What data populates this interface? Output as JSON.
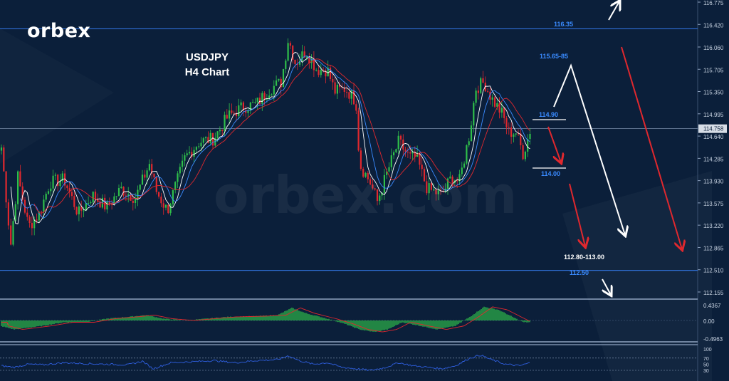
{
  "brand": {
    "logo": "orbex",
    "watermark": "orbex.com"
  },
  "title": {
    "line1": "USDJPY",
    "line2": "H4 Chart"
  },
  "colors": {
    "background": "#0b1f3a",
    "bull": "#2fbf4a",
    "bear": "#e0282e",
    "level_line": "#2f6fd6",
    "level_text": "#3a8bff",
    "arrow_red": "#e0282e",
    "arrow_white": "#ffffff",
    "macd": "#2fbf4a",
    "signal": "#e0282e",
    "rsi": "#2f5fe0"
  },
  "chart_data": {
    "type": "candlestick",
    "symbol": "USDJPY",
    "timeframe": "H4",
    "current_price": "114.758",
    "price_axis": [
      "116.775",
      "116.420",
      "116.060",
      "115.705",
      "115.350",
      "114.995",
      "114.640",
      "114.285",
      "113.930",
      "113.575",
      "113.220",
      "112.865",
      "112.510",
      "112.155"
    ],
    "ylim": [
      112.1,
      116.8
    ],
    "horizontal_levels": [
      {
        "price": 116.35,
        "label": "116.35"
      },
      {
        "price": 112.5,
        "label": "112.50"
      }
    ],
    "level_labels": [
      {
        "text": "115.65-85",
        "price": 115.75
      },
      {
        "text": "114.90",
        "price": 114.9
      },
      {
        "text": "114.00",
        "price": 114.0
      },
      {
        "text": "112.80-113.00",
        "price": 112.9
      }
    ],
    "anchors": [
      [
        0,
        114.7
      ],
      [
        15,
        112.9
      ],
      [
        25,
        114.0
      ],
      [
        40,
        113.2
      ],
      [
        55,
        113.4
      ],
      [
        70,
        113.9
      ],
      [
        90,
        113.95
      ],
      [
        110,
        113.4
      ],
      [
        130,
        113.7
      ],
      [
        150,
        113.5
      ],
      [
        170,
        113.8
      ],
      [
        190,
        113.65
      ],
      [
        210,
        114.2
      ],
      [
        220,
        113.75
      ],
      [
        235,
        113.45
      ],
      [
        260,
        114.3
      ],
      [
        280,
        114.55
      ],
      [
        300,
        114.6
      ],
      [
        320,
        114.95
      ],
      [
        340,
        115.1
      ],
      [
        360,
        115.15
      ],
      [
        380,
        115.4
      ],
      [
        395,
        115.5
      ],
      [
        405,
        116.2
      ],
      [
        415,
        115.8
      ],
      [
        430,
        116.0
      ],
      [
        445,
        115.7
      ],
      [
        460,
        115.7
      ],
      [
        470,
        115.35
      ],
      [
        485,
        115.4
      ],
      [
        500,
        115.2
      ],
      [
        505,
        114.2
      ],
      [
        520,
        113.9
      ],
      [
        530,
        113.6
      ],
      [
        545,
        114.1
      ],
      [
        560,
        114.55
      ],
      [
        575,
        114.3
      ],
      [
        585,
        114.3
      ],
      [
        600,
        113.8
      ],
      [
        620,
        113.7
      ],
      [
        635,
        114.0
      ],
      [
        645,
        113.9
      ],
      [
        660,
        114.7
      ],
      [
        668,
        115.4
      ],
      [
        680,
        115.5
      ],
      [
        690,
        115.25
      ],
      [
        705,
        115.0
      ],
      [
        715,
        114.7
      ],
      [
        725,
        114.7
      ],
      [
        735,
        114.35
      ],
      [
        745,
        114.75
      ]
    ],
    "macd_axis": [
      "0.4367",
      "0.00",
      "-0.4963"
    ],
    "macd_anchors": [
      [
        0,
        -0.15
      ],
      [
        20,
        -0.25
      ],
      [
        40,
        -0.2
      ],
      [
        60,
        -0.15
      ],
      [
        90,
        -0.05
      ],
      [
        120,
        -0.05
      ],
      [
        150,
        0.05
      ],
      [
        180,
        0.1
      ],
      [
        205,
        0.15
      ],
      [
        230,
        0.05
      ],
      [
        260,
        0.0
      ],
      [
        290,
        0.05
      ],
      [
        320,
        0.1
      ],
      [
        360,
        0.12
      ],
      [
        390,
        0.15
      ],
      [
        410,
        0.35
      ],
      [
        430,
        0.2
      ],
      [
        460,
        0.05
      ],
      [
        485,
        -0.1
      ],
      [
        505,
        -0.25
      ],
      [
        525,
        -0.32
      ],
      [
        545,
        -0.25
      ],
      [
        565,
        -0.05
      ],
      [
        590,
        -0.15
      ],
      [
        615,
        -0.25
      ],
      [
        640,
        -0.15
      ],
      [
        660,
        0.1
      ],
      [
        680,
        0.38
      ],
      [
        700,
        0.3
      ],
      [
        720,
        0.1
      ],
      [
        735,
        -0.05
      ],
      [
        745,
        -0.05
      ]
    ],
    "rsi_axis": [
      "100",
      "70",
      "50",
      "30"
    ],
    "rsi_anchors": [
      [
        0,
        45
      ],
      [
        20,
        40
      ],
      [
        40,
        50
      ],
      [
        60,
        48
      ],
      [
        90,
        55
      ],
      [
        120,
        52
      ],
      [
        150,
        50
      ],
      [
        180,
        48
      ],
      [
        200,
        60
      ],
      [
        215,
        35
      ],
      [
        240,
        55
      ],
      [
        270,
        58
      ],
      [
        300,
        62
      ],
      [
        330,
        55
      ],
      [
        360,
        62
      ],
      [
        390,
        65
      ],
      [
        405,
        78
      ],
      [
        420,
        62
      ],
      [
        440,
        50
      ],
      [
        460,
        55
      ],
      [
        480,
        40
      ],
      [
        500,
        35
      ],
      [
        520,
        30
      ],
      [
        540,
        38
      ],
      [
        560,
        55
      ],
      [
        580,
        45
      ],
      [
        600,
        40
      ],
      [
        620,
        35
      ],
      [
        640,
        45
      ],
      [
        660,
        70
      ],
      [
        675,
        80
      ],
      [
        690,
        65
      ],
      [
        710,
        50
      ],
      [
        730,
        45
      ],
      [
        745,
        55
      ]
    ]
  }
}
